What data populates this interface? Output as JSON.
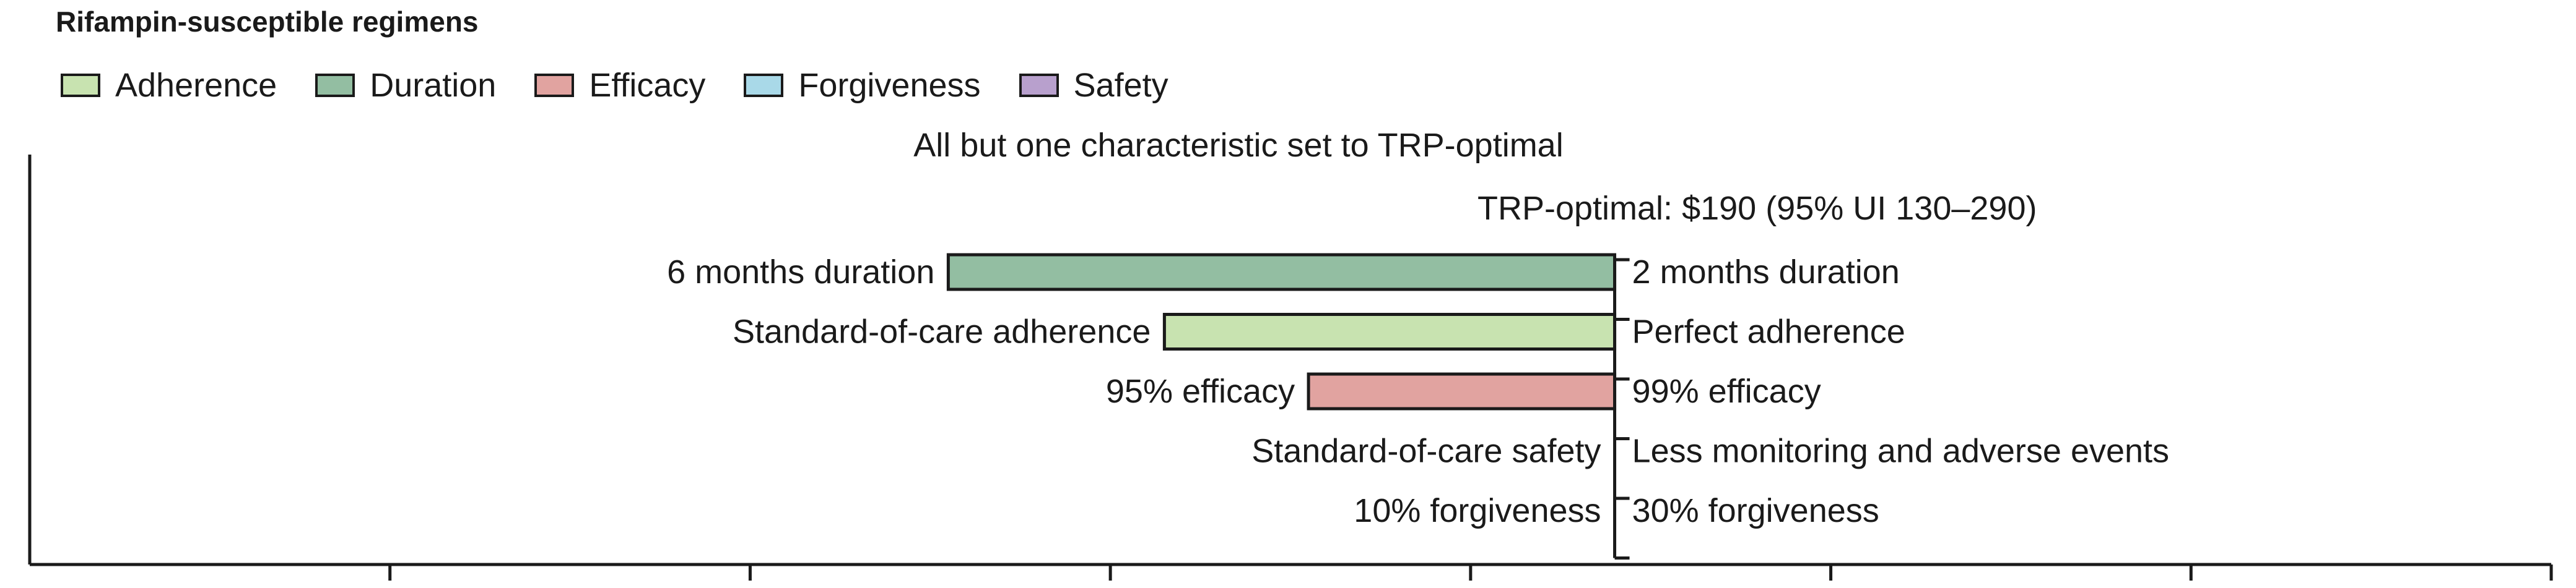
{
  "chart_data": {
    "type": "bar",
    "orientation": "horizontal",
    "title": "Rifampin-susceptible regimens",
    "subtitle": "All but one characteristic set to TRP-optimal",
    "baseline_label": "TRP-optimal: $190 (95% UI 130–290)",
    "baseline_value": 190,
    "legend": [
      {
        "name": "Adherence",
        "color": "#c8e3b0"
      },
      {
        "name": "Duration",
        "color": "#93bea2"
      },
      {
        "name": "Efficacy",
        "color": "#e1a3a0"
      },
      {
        "name": "Forgiveness",
        "color": "#a9d9e8"
      },
      {
        "name": "Safety",
        "color": "#b8a0cd"
      }
    ],
    "bars": [
      {
        "characteristic": "Duration",
        "left_label": "6 months duration",
        "right_label": "2 months duration",
        "value": 5,
        "color": "#93bea2"
      },
      {
        "characteristic": "Adherence",
        "left_label": "Standard-of-care adherence",
        "right_label": "Perfect adherence",
        "value": 65,
        "color": "#c8e3b0"
      },
      {
        "characteristic": "Efficacy",
        "left_label": "95% efficacy",
        "right_label": "99% efficacy",
        "value": 105,
        "color": "#e1a3a0"
      },
      {
        "characteristic": "Safety",
        "left_label": "Standard-of-care safety",
        "right_label": "Less monitoring and adverse events",
        "value": 190,
        "color": "#b8a0cd"
      },
      {
        "characteristic": "Forgiveness",
        "left_label": "10% forgiveness",
        "right_label": "30% forgiveness",
        "value": 190,
        "color": "#a9d9e8"
      }
    ],
    "xlim": [
      -250,
      450
    ],
    "x_ticks": [
      -250,
      -150,
      -50,
      50,
      150,
      250,
      350,
      450
    ],
    "tick_labels_shown": false,
    "grid": false
  }
}
